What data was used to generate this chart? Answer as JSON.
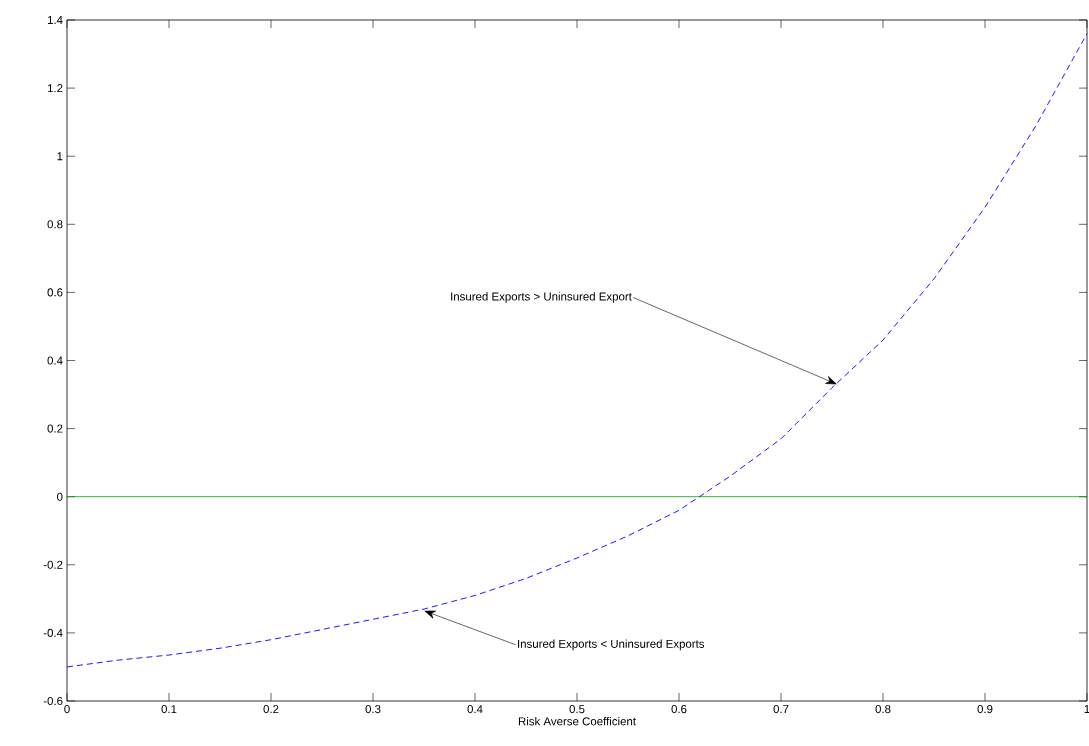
{
  "chart_data": {
    "type": "line",
    "xlabel": "Risk Averse Coefficient",
    "x": [
      0,
      0.05,
      0.1,
      0.15,
      0.2,
      0.25,
      0.3,
      0.35,
      0.4,
      0.45,
      0.5,
      0.55,
      0.6,
      0.62,
      0.65,
      0.7,
      0.75,
      0.8,
      0.85,
      0.9,
      0.95,
      1
    ],
    "series": [
      {
        "color": "#0000ff",
        "line_style": "dashed",
        "values": [
          -0.5,
          -0.48,
          -0.465,
          -0.445,
          -0.42,
          -0.39,
          -0.36,
          -0.33,
          -0.29,
          -0.24,
          -0.18,
          -0.115,
          -0.04,
          0,
          0.06,
          0.17,
          0.32,
          0.46,
          0.64,
          0.85,
          1.09,
          1.36
        ]
      }
    ],
    "xlim": [
      0,
      1
    ],
    "ylim": [
      -0.6,
      1.4
    ],
    "xticks": [
      0,
      0.1,
      0.2,
      0.3,
      0.4,
      0.5,
      0.6,
      0.7,
      0.8,
      0.9,
      1
    ],
    "yticks": [
      -0.6,
      -0.4,
      -0.2,
      0,
      0.2,
      0.4,
      0.6,
      0.8,
      1,
      1.2,
      1.4
    ],
    "ref_lines": [
      {
        "axis": "y",
        "value": 0,
        "color": "#00a000",
        "line_style": "solid"
      }
    ],
    "annotations": [
      {
        "text": "Insured Exports > Uninsured Export",
        "x": 0.755,
        "y": 0.33
      },
      {
        "text": "Insured Exports < Uninsured Exports",
        "x": 0.35,
        "y": -0.335
      }
    ]
  }
}
